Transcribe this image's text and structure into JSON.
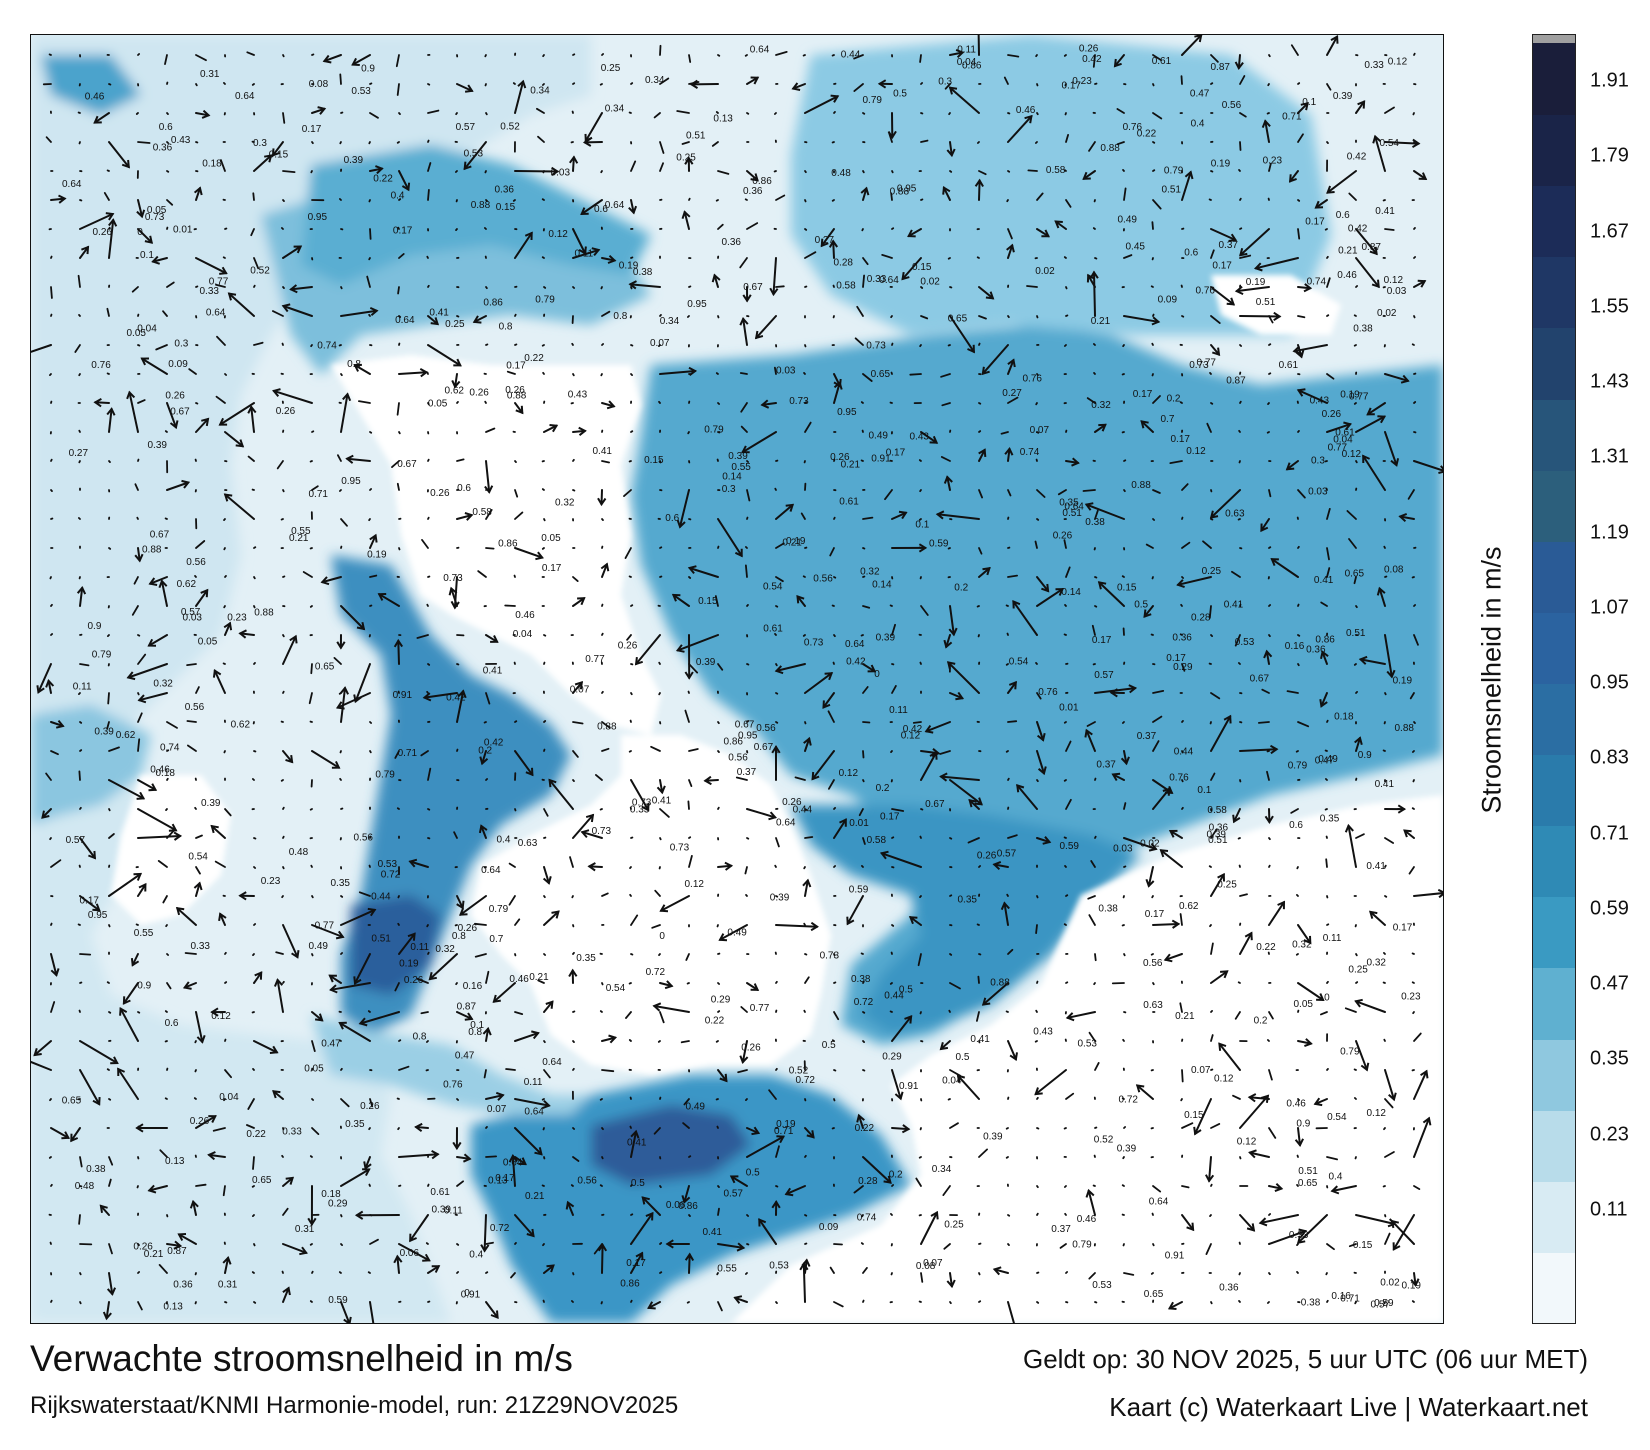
{
  "title": "Verwachte stroomsnelheid in m/s",
  "subtitle": "Rijkswaterstaat/KNMI Harmonie-model, run: 21Z29NOV2025",
  "valid_time": "Geldt op: 30 NOV 2025, 5 uur UTC (06 uur MET)",
  "credit": "Kaart (c) Waterkaart Live | Waterkaart.net",
  "legend": {
    "title": "Stroomsnelheid in m/s",
    "ticks": [
      "1.91",
      "1.79",
      "1.67",
      "1.55",
      "1.43",
      "1.31",
      "1.19",
      "1.07",
      "0.95",
      "0.83",
      "0.71",
      "0.59",
      "0.47",
      "0.35",
      "0.23",
      "0.11"
    ],
    "colors": [
      "#f2f8fb",
      "#d8ebf3",
      "#b8dcea",
      "#8fc8df",
      "#5fb0d0",
      "#3a9ac2",
      "#2f8ab5",
      "#2a7bab",
      "#2b6ea3",
      "#2b63a0",
      "#2a5b96",
      "#2c5f7c",
      "#27557a",
      "#22436d",
      "#1f3765",
      "#1c2c58",
      "#1a2448",
      "#1a1e3a"
    ],
    "cap_color": "#a0a0a0"
  },
  "map": {
    "land_color": "#ffffff",
    "water_color": "#d6eaf3",
    "flow_colors": {
      "low": "#a9d3e6",
      "mid": "#4ea6ca",
      "high": "#2d83b4",
      "peak": "#2c5a9a"
    },
    "arrow_color": "#111111",
    "labels": [
      {
        "v": "0.2"
      },
      {
        "v": "0.22"
      },
      {
        "v": "0.12"
      },
      {
        "v": "0.09"
      },
      {
        "v": "0.08"
      },
      {
        "v": "0.11"
      },
      {
        "v": "0.07"
      },
      {
        "v": "0.13"
      },
      {
        "v": "0.18"
      },
      {
        "v": "0.17"
      },
      {
        "v": "0.16"
      },
      {
        "v": "0.15"
      },
      {
        "v": "0.14"
      },
      {
        "v": "0.23"
      },
      {
        "v": "0.21"
      },
      {
        "v": "0.19"
      },
      {
        "v": "0.05"
      },
      {
        "v": "0.06"
      },
      {
        "v": "0.03"
      },
      {
        "v": "0.01"
      },
      {
        "v": "0.04"
      },
      {
        "v": "0.1"
      },
      {
        "v": "0.25"
      },
      {
        "v": "0.26"
      },
      {
        "v": "0.27"
      },
      {
        "v": "0.28"
      },
      {
        "v": "0.29"
      },
      {
        "v": "0.3"
      },
      {
        "v": "0.31"
      },
      {
        "v": "0.32"
      },
      {
        "v": "0.33"
      },
      {
        "v": "0.34"
      },
      {
        "v": "0.35"
      },
      {
        "v": "0.36"
      },
      {
        "v": "0.37"
      },
      {
        "v": "0.38"
      },
      {
        "v": "0.39"
      },
      {
        "v": "0.4"
      },
      {
        "v": "0.41"
      },
      {
        "v": "0.42"
      },
      {
        "v": "0.43"
      },
      {
        "v": "0.44"
      },
      {
        "v": "0.45"
      },
      {
        "v": "0.46"
      },
      {
        "v": "0.47"
      },
      {
        "v": "0.48"
      },
      {
        "v": "0.49"
      },
      {
        "v": "0.5"
      },
      {
        "v": "0.51"
      },
      {
        "v": "0.52"
      },
      {
        "v": "0.53"
      },
      {
        "v": "0.54"
      },
      {
        "v": "0.55"
      },
      {
        "v": "0.56"
      },
      {
        "v": "0.57"
      },
      {
        "v": "0.58"
      },
      {
        "v": "0.59"
      },
      {
        "v": "0.6"
      },
      {
        "v": "0.61"
      },
      {
        "v": "0.62"
      },
      {
        "v": "0.63"
      },
      {
        "v": "0.64"
      },
      {
        "v": "0.65"
      },
      {
        "v": "0.67"
      },
      {
        "v": "0.7"
      },
      {
        "v": "0.71"
      },
      {
        "v": "0.72"
      },
      {
        "v": "0.73"
      },
      {
        "v": "0.74"
      },
      {
        "v": "0.76"
      },
      {
        "v": "0.77"
      },
      {
        "v": "0.79"
      },
      {
        "v": "0.8"
      },
      {
        "v": "0.86"
      },
      {
        "v": "0.87"
      },
      {
        "v": "0.88"
      },
      {
        "v": "0.9"
      },
      {
        "v": "0.91"
      },
      {
        "v": "0.95"
      },
      {
        "v": "0"
      },
      {
        "v": "0.02"
      },
      {
        "v": "0.12"
      },
      {
        "v": "0.17"
      },
      {
        "v": "0.26"
      },
      {
        "v": "0.39"
      },
      {
        "v": "0.56"
      },
      {
        "v": "0.64"
      },
      {
        "v": "0.41"
      }
    ]
  }
}
